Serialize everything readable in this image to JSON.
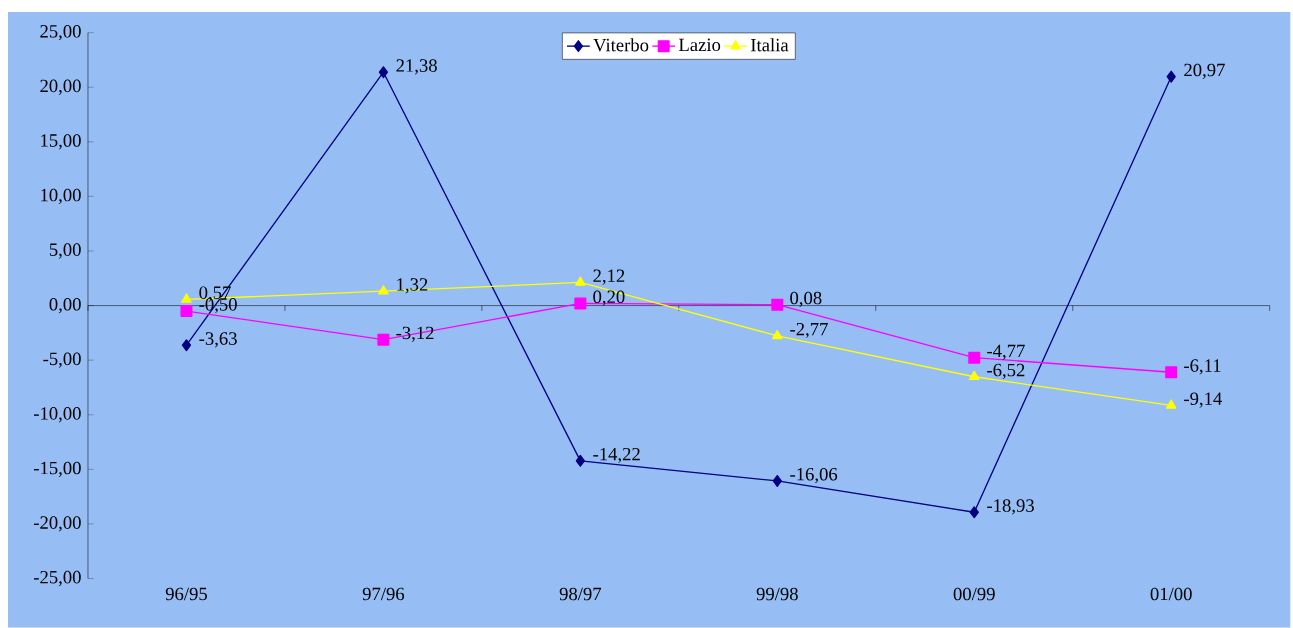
{
  "chart_data": {
    "type": "line",
    "categories": [
      "96/95",
      "97/96",
      "98/97",
      "99/98",
      "00/99",
      "01/00"
    ],
    "ylim": [
      -25,
      25
    ],
    "yticks": [
      {
        "value": -25,
        "label": "-25,00"
      },
      {
        "value": -20,
        "label": "-20,00"
      },
      {
        "value": -15,
        "label": "-15,00"
      },
      {
        "value": -10,
        "label": "-10,00"
      },
      {
        "value": -5,
        "label": "-5,00"
      },
      {
        "value": 0,
        "label": "0,00"
      },
      {
        "value": 5,
        "label": "5,00"
      },
      {
        "value": 10,
        "label": "10,00"
      },
      {
        "value": 15,
        "label": "15,00"
      },
      {
        "value": 20,
        "label": "20,00"
      },
      {
        "value": 25,
        "label": "25,00"
      }
    ],
    "legend": "top",
    "series": [
      {
        "name": "Viterbo",
        "color": "#000080",
        "marker": "diamond",
        "values": [
          -3.63,
          21.38,
          -14.22,
          -16.06,
          -18.93,
          20.97
        ],
        "value_labels": [
          "-3,63",
          "21,38",
          "-14,22",
          "-16,06",
          "-18,93",
          "20,97"
        ]
      },
      {
        "name": "Lazio",
        "color": "#ff00ff",
        "marker": "square",
        "values": [
          -0.5,
          -3.12,
          0.2,
          0.08,
          -4.77,
          -6.11
        ],
        "value_labels": [
          "-0,50",
          "-3,12",
          "0,20",
          "0,08",
          "-4,77",
          "-6,11"
        ]
      },
      {
        "name": "Italia",
        "color": "#ffff00",
        "marker": "triangle",
        "values": [
          0.57,
          1.32,
          2.12,
          -2.77,
          -6.52,
          -9.14
        ],
        "value_labels": [
          "0,57",
          "1,32",
          "2,12",
          "-2,77",
          "-6,52",
          "-9,14"
        ]
      }
    ]
  }
}
